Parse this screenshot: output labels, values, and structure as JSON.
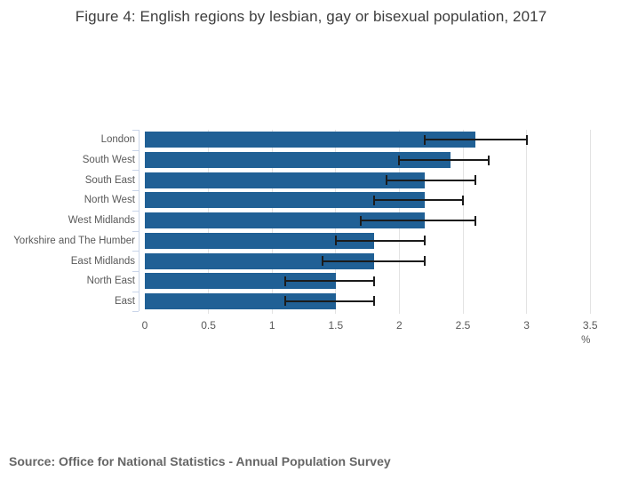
{
  "title": "Figure 4: English regions by lesbian, gay or bisexual population, 2017",
  "source": "Source: Office for National Statistics - Annual Population Survey",
  "chart_data": {
    "type": "bar",
    "orientation": "horizontal",
    "title": "Figure 4: English regions by lesbian, gay or bisexual population, 2017",
    "categories": [
      "London",
      "South West",
      "South East",
      "North West",
      "West Midlands",
      "Yorkshire and The Humber",
      "East Midlands",
      "North East",
      "East"
    ],
    "values": [
      2.6,
      2.4,
      2.2,
      2.2,
      2.2,
      1.8,
      1.8,
      1.5,
      1.5
    ],
    "error_bars": {
      "low": [
        2.2,
        2.0,
        1.9,
        1.8,
        1.7,
        1.5,
        1.4,
        1.1,
        1.1
      ],
      "high": [
        3.0,
        2.7,
        2.6,
        2.5,
        2.6,
        2.2,
        2.2,
        1.8,
        1.8
      ]
    },
    "xlabel": "%",
    "xlim": [
      0,
      3.5
    ],
    "xtick_values": [
      0,
      0.5,
      1,
      1.5,
      2,
      2.5,
      3,
      3.5
    ],
    "xtick_labels": [
      "0",
      "0.5",
      "1",
      "1.5",
      "2",
      "2.5",
      "3",
      "3.5"
    ],
    "grid": true,
    "legend": false,
    "colors": {
      "bar": "#206095",
      "grid": "#e3e3e3",
      "axis": "#c9d5e9",
      "error_bar": "#1b1b1b",
      "text": "#595959",
      "title": "#3d3d3d"
    }
  }
}
